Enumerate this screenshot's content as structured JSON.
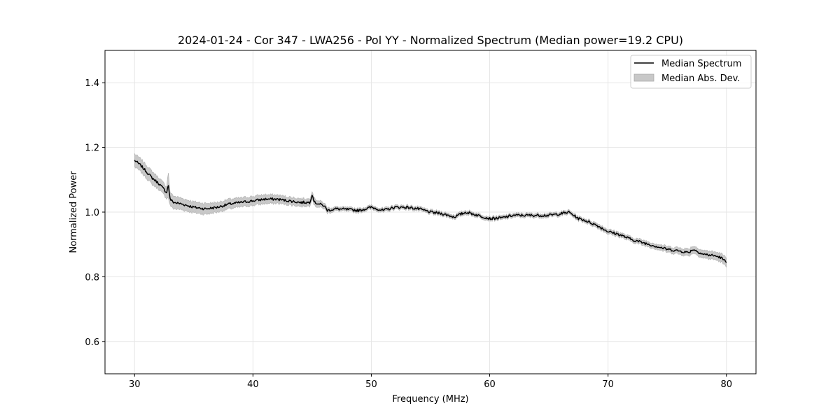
{
  "chart_data": {
    "type": "line",
    "title": "2024-01-24 - Cor 347 - LWA256 - Pol YY - Normalized Spectrum (Median power=19.2 CPU)",
    "xlabel": "Frequency (MHz)",
    "ylabel": "Normalized Power",
    "xlim": [
      27.5,
      82.5
    ],
    "ylim": [
      0.5,
      1.5
    ],
    "xticks": [
      30,
      40,
      50,
      60,
      70,
      80
    ],
    "yticks": [
      0.6,
      0.8,
      1.0,
      1.2,
      1.4
    ],
    "xtick_labels": [
      "30",
      "40",
      "50",
      "60",
      "70",
      "80"
    ],
    "ytick_labels": [
      "0.6",
      "0.8",
      "1.0",
      "1.2",
      "1.4"
    ],
    "grid": true,
    "legend_position": "top-right",
    "series": [
      {
        "name": "Median Spectrum",
        "kind": "line",
        "color": "#000000",
        "x": [
          30,
          30.5,
          31,
          31.5,
          32,
          32.5,
          32.7,
          32.85,
          33.0,
          33.3,
          34,
          35,
          36,
          37,
          38,
          39,
          40,
          41,
          42,
          43,
          44,
          44.8,
          45.0,
          45.2,
          45.6,
          46.0,
          46.3,
          47,
          48,
          49,
          50,
          51,
          52,
          53,
          54,
          55,
          56,
          57,
          58,
          59,
          60,
          61,
          62,
          63,
          64,
          65,
          66,
          66.7,
          67.5,
          68,
          69,
          70,
          71,
          72,
          73,
          74,
          75,
          76,
          76.8,
          77.2,
          78,
          79,
          79.5,
          80
        ],
        "values": [
          1.16,
          1.145,
          1.125,
          1.105,
          1.09,
          1.07,
          1.06,
          1.085,
          1.04,
          1.03,
          1.025,
          1.015,
          1.01,
          1.015,
          1.025,
          1.03,
          1.035,
          1.04,
          1.04,
          1.035,
          1.03,
          1.03,
          1.055,
          1.03,
          1.025,
          1.02,
          1.005,
          1.01,
          1.008,
          1.005,
          1.015,
          1.005,
          1.015,
          1.015,
          1.01,
          1.0,
          0.995,
          0.985,
          1.0,
          0.99,
          0.98,
          0.982,
          0.99,
          0.99,
          0.99,
          0.99,
          0.995,
          1.0,
          0.98,
          0.975,
          0.96,
          0.94,
          0.93,
          0.915,
          0.905,
          0.895,
          0.885,
          0.88,
          0.875,
          0.885,
          0.87,
          0.865,
          0.86,
          0.845
        ]
      },
      {
        "name": "Median Abs. Dev.",
        "kind": "band",
        "color": "#c8c8c8",
        "x": [
          30,
          30.5,
          31,
          31.5,
          32,
          32.5,
          32.7,
          32.85,
          33.0,
          33.3,
          34,
          35,
          36,
          37,
          38,
          39,
          40,
          41,
          42,
          43,
          44,
          44.8,
          45.0,
          45.2,
          45.6,
          46.0,
          46.3,
          47,
          48,
          49,
          50,
          51,
          52,
          53,
          54,
          55,
          56,
          57,
          58,
          59,
          60,
          61,
          62,
          63,
          64,
          65,
          66,
          66.7,
          67.5,
          68,
          69,
          70,
          71,
          72,
          73,
          74,
          75,
          76,
          76.8,
          77.2,
          78,
          79,
          79.5,
          80
        ],
        "spread": [
          0.02,
          0.02,
          0.02,
          0.02,
          0.018,
          0.018,
          0.018,
          0.04,
          0.02,
          0.02,
          0.018,
          0.017,
          0.017,
          0.015,
          0.015,
          0.014,
          0.014,
          0.014,
          0.013,
          0.012,
          0.012,
          0.011,
          0.011,
          0.011,
          0.01,
          0.009,
          0.008,
          0.006,
          0.006,
          0.006,
          0.006,
          0.006,
          0.006,
          0.006,
          0.006,
          0.006,
          0.006,
          0.006,
          0.006,
          0.006,
          0.006,
          0.006,
          0.006,
          0.006,
          0.006,
          0.006,
          0.006,
          0.006,
          0.006,
          0.006,
          0.007,
          0.007,
          0.007,
          0.007,
          0.008,
          0.008,
          0.009,
          0.01,
          0.011,
          0.011,
          0.012,
          0.012,
          0.013,
          0.014
        ]
      }
    ]
  }
}
